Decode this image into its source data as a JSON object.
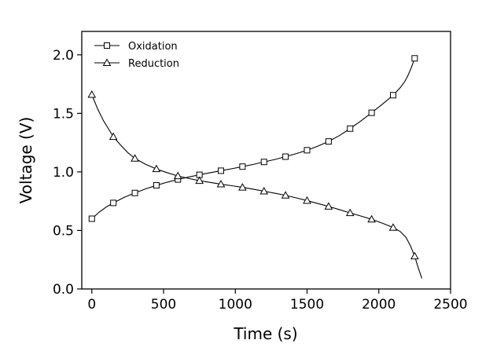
{
  "chart_data": {
    "type": "line",
    "xlabel": "Time (s)",
    "ylabel": "Voltage (V)",
    "xlim": [
      -70,
      2500
    ],
    "ylim": [
      0,
      2.2
    ],
    "xticks": [
      0,
      500,
      1000,
      1500,
      2000,
      2500
    ],
    "xtick_labels": [
      "0",
      "500",
      "1000",
      "1500",
      "2000",
      "2500"
    ],
    "yticks": [
      0.0,
      0.5,
      1.0,
      1.5,
      2.0
    ],
    "ytick_labels": [
      "0.0",
      "0.5",
      "1.0",
      "1.5",
      "2.0"
    ],
    "grid": false,
    "legend_position": "top-left",
    "series": [
      {
        "name": "Oxidation",
        "marker": "square",
        "color": "#000000",
        "x": [
          0,
          150,
          300,
          450,
          600,
          750,
          900,
          1050,
          1200,
          1350,
          1500,
          1650,
          1800,
          1950,
          2100,
          2250
        ],
        "y": [
          0.6,
          0.735,
          0.82,
          0.885,
          0.935,
          0.975,
          1.01,
          1.045,
          1.085,
          1.13,
          1.185,
          1.26,
          1.37,
          1.505,
          1.655,
          1.97
        ],
        "curve_x": [
          0,
          50,
          100,
          150,
          225,
          300,
          375,
          450,
          525,
          600,
          675,
          750,
          825,
          900,
          975,
          1050,
          1125,
          1200,
          1275,
          1350,
          1425,
          1500,
          1575,
          1650,
          1725,
          1800,
          1875,
          1950,
          2025,
          2100,
          2150,
          2180,
          2200,
          2220,
          2240,
          2250
        ],
        "curve_y": [
          0.6,
          0.655,
          0.7,
          0.735,
          0.782,
          0.82,
          0.855,
          0.885,
          0.912,
          0.935,
          0.956,
          0.975,
          0.993,
          1.01,
          1.027,
          1.045,
          1.064,
          1.085,
          1.106,
          1.13,
          1.156,
          1.185,
          1.22,
          1.26,
          1.31,
          1.37,
          1.435,
          1.505,
          1.578,
          1.655,
          1.72,
          1.77,
          1.815,
          1.87,
          1.935,
          1.97
        ]
      },
      {
        "name": "Reduction",
        "marker": "triangle",
        "color": "#000000",
        "x": [
          0,
          150,
          300,
          450,
          600,
          750,
          900,
          1050,
          1200,
          1350,
          1500,
          1650,
          1800,
          1950,
          2100,
          2250
        ],
        "y": [
          1.66,
          1.3,
          1.115,
          1.025,
          0.965,
          0.925,
          0.895,
          0.868,
          0.835,
          0.8,
          0.755,
          0.705,
          0.65,
          0.595,
          0.525,
          0.28
        ],
        "curve_x": [
          0,
          40,
          80,
          120,
          150,
          200,
          250,
          300,
          375,
          450,
          525,
          600,
          675,
          750,
          825,
          900,
          975,
          1050,
          1125,
          1200,
          1275,
          1350,
          1425,
          1500,
          1575,
          1650,
          1725,
          1800,
          1875,
          1950,
          2025,
          2100,
          2150,
          2190,
          2220,
          2250,
          2275,
          2300
        ],
        "curve_y": [
          1.66,
          1.54,
          1.44,
          1.36,
          1.3,
          1.23,
          1.165,
          1.115,
          1.065,
          1.025,
          0.993,
          0.965,
          0.944,
          0.925,
          0.91,
          0.895,
          0.882,
          0.868,
          0.852,
          0.835,
          0.818,
          0.8,
          0.778,
          0.755,
          0.73,
          0.705,
          0.678,
          0.65,
          0.623,
          0.595,
          0.562,
          0.525,
          0.49,
          0.44,
          0.37,
          0.28,
          0.18,
          0.09
        ]
      }
    ]
  }
}
